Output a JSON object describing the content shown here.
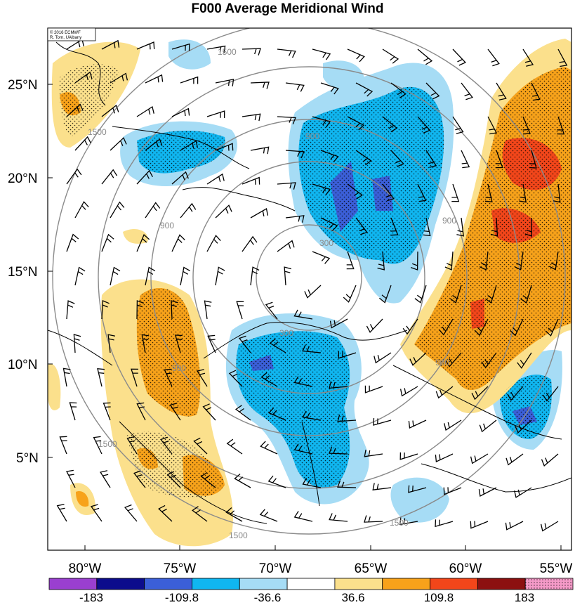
{
  "title": "F000 Average Meridional Wind",
  "credit": {
    "line1": "© 2016 ECMWF",
    "line2": "R. Torn, UAlbany"
  },
  "lat_labels": [
    "25°N",
    "20°N",
    "15°N",
    "10°N",
    "5°N"
  ],
  "lon_labels": [
    "80°W",
    "75°W",
    "70°W",
    "65°W",
    "60°W",
    "55°W"
  ],
  "colorbar": {
    "labels": [
      "-183",
      "-109.8",
      "-36.6",
      "36.6",
      "109.8",
      "183"
    ],
    "colors": [
      "#9a3fd0",
      "#0c0c8c",
      "#3b5fd8",
      "#10b6f0",
      "#a6dcf5",
      "#ffffff",
      "#fbe08c",
      "#f7a21a",
      "#f2461a",
      "#8c1010",
      "#f59ac8"
    ]
  },
  "contour_labels": [
    "1500",
    "1500",
    "900",
    "900",
    "900",
    "300",
    "300",
    "900",
    "900",
    "1500",
    "1500",
    "1500"
  ],
  "colors": {
    "neg_light": "#a6dcf5",
    "neg_mid": "#10b6f0",
    "neg_strong": "#3b5fd8",
    "pos_light": "#fbe08c",
    "pos_mid": "#f7a21a",
    "pos_strong": "#f2461a",
    "contour": "#8a8a8a"
  }
}
